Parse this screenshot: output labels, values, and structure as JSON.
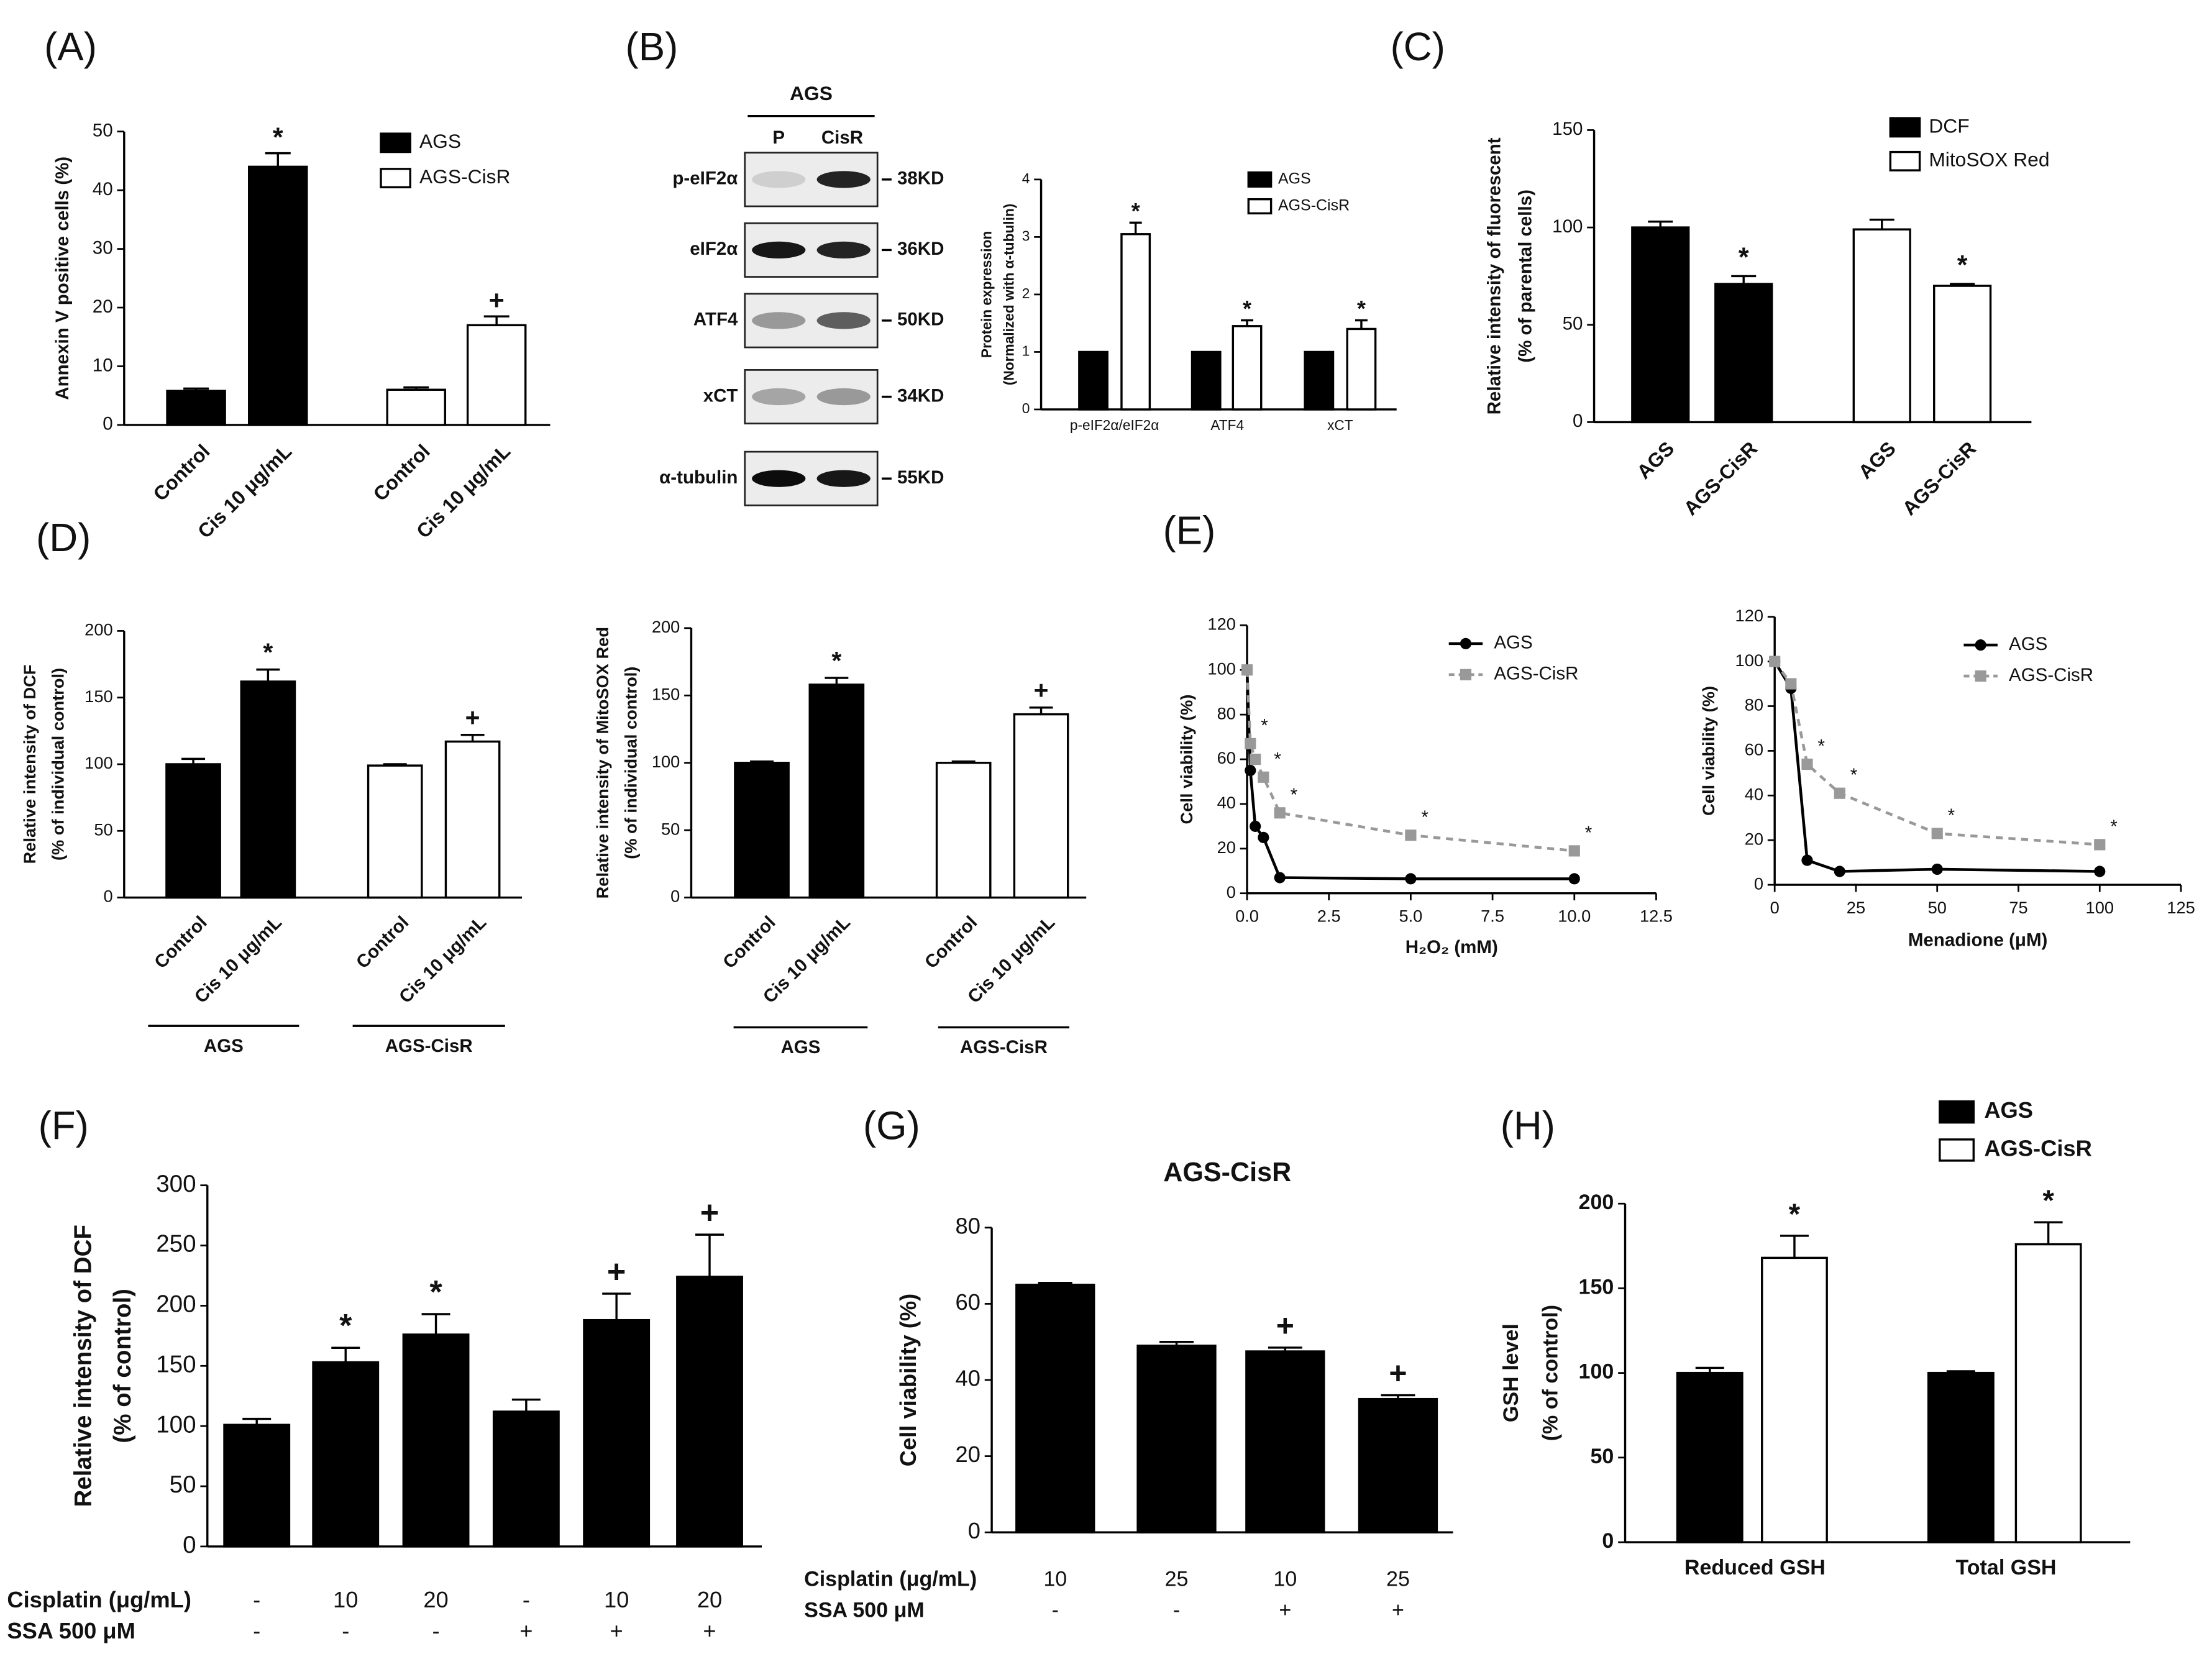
{
  "panel_labels": [
    "(A)",
    "(B)",
    "(C)",
    "(D)",
    "(E)",
    "(F)",
    "(G)",
    "(H)"
  ],
  "blot": {
    "header": "AGS",
    "lanes": [
      "P",
      "CisR"
    ],
    "rows": [
      {
        "protein": "p-eIF2α",
        "size": "38KD"
      },
      {
        "protein": "eIF2α",
        "size": "36KD"
      },
      {
        "protein": "ATF4",
        "size": "50KD"
      },
      {
        "protein": "xCT",
        "size": "34KD"
      },
      {
        "protein": "α-tubulin",
        "size": "55KD"
      }
    ]
  },
  "chart_data": [
    {
      "type": "bar",
      "ylabel": "Annexin V positive cells (%)",
      "categories": [
        "Control",
        "Cis 10 μg/mL",
        "Control",
        "Cis 10 μg/mL"
      ],
      "ylim": [
        0,
        50
      ],
      "yticks": [
        0,
        10,
        20,
        30,
        40,
        50
      ],
      "series": [
        {
          "name": "AGS",
          "color": "#000000",
          "values": [
            5.8,
            44,
            null,
            null
          ],
          "errors": [
            0.4,
            2.3,
            null,
            null
          ],
          "markers": [
            null,
            "*",
            null,
            null
          ]
        },
        {
          "name": "AGS-CisR",
          "color": "#ffffff",
          "values": [
            null,
            null,
            6,
            17
          ],
          "errors": [
            null,
            null,
            0.4,
            1.5
          ],
          "markers": [
            null,
            null,
            null,
            "+"
          ]
        }
      ]
    },
    {
      "type": "bar",
      "ylabel": [
        "Protein expression",
        "(Normalized with α-tubulin)"
      ],
      "categories": [
        "p-eIF2α/eIF2α",
        "ATF4",
        "xCT"
      ],
      "ylim": [
        0,
        4
      ],
      "yticks": [
        0,
        1,
        2,
        3,
        4
      ],
      "series": [
        {
          "name": "AGS",
          "color": "#000000",
          "values": [
            1,
            1,
            1
          ]
        },
        {
          "name": "AGS-CisR",
          "color": "#ffffff",
          "values": [
            3.05,
            1.45,
            1.4
          ],
          "errors": [
            0.2,
            0.1,
            0.15
          ],
          "markers": [
            "*",
            "*",
            "*"
          ]
        }
      ]
    },
    {
      "type": "bar",
      "ylabel": [
        "Relative intensity of fluorescent",
        "(% of parental cells)"
      ],
      "categories": [
        "AGS",
        "AGS-CisR",
        "AGS",
        "AGS-CisR"
      ],
      "ylim": [
        0,
        150
      ],
      "yticks": [
        0,
        50,
        100,
        150
      ],
      "series": [
        {
          "name": "DCF",
          "color": "#000000",
          "values": [
            100,
            71,
            null,
            null
          ],
          "errors": [
            3,
            4,
            null,
            null
          ],
          "markers": [
            null,
            "*",
            null,
            null
          ]
        },
        {
          "name": "MitoSOX Red",
          "color": "#ffffff",
          "values": [
            null,
            null,
            99,
            70
          ],
          "errors": [
            null,
            null,
            5,
            1
          ],
          "markers": [
            null,
            null,
            null,
            "*"
          ]
        }
      ]
    },
    {
      "type": "bar",
      "ylabel": [
        "Relative intensity of DCF",
        "(% of individual control)"
      ],
      "categories": [
        "Control",
        "Cis 10 μg/mL",
        "Control",
        "Cis 10 μg/mL"
      ],
      "groups": [
        "AGS",
        "AGS-CisR"
      ],
      "ylim": [
        0,
        200
      ],
      "yticks": [
        0,
        50,
        100,
        150,
        200
      ],
      "series": [
        {
          "color": "#000000",
          "values": [
            100,
            162,
            null,
            null
          ],
          "errors": [
            4,
            9,
            null,
            null
          ],
          "markers": [
            null,
            "*",
            null,
            null
          ]
        },
        {
          "color": "#ffffff",
          "values": [
            null,
            null,
            99,
            117
          ],
          "errors": [
            null,
            null,
            1,
            5
          ],
          "markers": [
            null,
            null,
            null,
            "+"
          ]
        }
      ]
    },
    {
      "type": "bar",
      "ylabel": [
        "Relative intensity of MitoSOX Red",
        "(% of individual control)"
      ],
      "categories": [
        "Control",
        "Cis 10 μg/mL",
        "Control",
        "Cis 10 μg/mL"
      ],
      "groups": [
        "AGS",
        "AGS-CisR"
      ],
      "ylim": [
        0,
        200
      ],
      "yticks": [
        0,
        50,
        100,
        150,
        200
      ],
      "series": [
        {
          "color": "#000000",
          "values": [
            100,
            158,
            null,
            null
          ],
          "errors": [
            1,
            5,
            null,
            null
          ],
          "markers": [
            null,
            "*",
            null,
            null
          ]
        },
        {
          "color": "#ffffff",
          "values": [
            null,
            null,
            100,
            136
          ],
          "errors": [
            null,
            null,
            1,
            5
          ],
          "markers": [
            null,
            null,
            null,
            "+"
          ]
        }
      ]
    },
    {
      "type": "line",
      "ylabel": "Cell viability (%)",
      "xlabel": "H₂O₂ (mM)",
      "x": [
        0,
        0.1,
        0.25,
        0.5,
        1,
        5,
        10
      ],
      "xlim": [
        0,
        12.5
      ],
      "xticks": [
        {
          "value": 0,
          "label": "0.0"
        },
        {
          "value": 2.5,
          "label": "2.5"
        },
        {
          "value": 5,
          "label": "5.0"
        },
        {
          "value": 7.5,
          "label": "7.5"
        },
        {
          "value": 10,
          "label": "10.0"
        },
        {
          "value": 12.5,
          "label": "12.5"
        }
      ],
      "ylim": [
        0,
        120
      ],
      "yticks": [
        0,
        20,
        40,
        60,
        80,
        100,
        120
      ],
      "series": [
        {
          "name": "AGS",
          "color": "#000000",
          "line_style": "solid",
          "marker": "circle",
          "values": [
            100,
            55,
            30,
            25,
            7,
            6.5,
            6.5
          ]
        },
        {
          "name": "AGS-CisR",
          "color": "#999999",
          "line_style": "dashed",
          "marker": "square",
          "values": [
            100,
            67,
            60,
            52,
            36,
            26,
            19
          ],
          "markers": [
            null,
            "*",
            null,
            "*",
            "*",
            "*",
            "*"
          ]
        }
      ]
    },
    {
      "type": "line",
      "ylabel": "Cell viability (%)",
      "xlabel": "Menadione (μM)",
      "x": [
        0,
        5,
        10,
        20,
        50,
        100
      ],
      "xlim": [
        0,
        125
      ],
      "xticks": [
        0,
        25,
        50,
        75,
        100,
        125
      ],
      "ylim": [
        0,
        120
      ],
      "yticks": [
        0,
        20,
        40,
        60,
        80,
        100,
        120
      ],
      "series": [
        {
          "name": "AGS",
          "color": "#000000",
          "line_style": "solid",
          "marker": "circle",
          "values": [
            100,
            88,
            11,
            6,
            7,
            6
          ]
        },
        {
          "name": "AGS-CisR",
          "color": "#999999",
          "line_style": "dashed",
          "marker": "square",
          "values": [
            100,
            90,
            54,
            41,
            23,
            18
          ],
          "markers": [
            null,
            null,
            "*",
            "*",
            "*",
            "*"
          ]
        }
      ]
    },
    {
      "type": "bar",
      "ylabel": [
        "Relative intensity of DCF",
        "(% of control)"
      ],
      "ylim": [
        0,
        300
      ],
      "yticks": [
        0,
        50,
        100,
        150,
        200,
        250,
        300
      ],
      "color": "#000000",
      "values": [
        101,
        153,
        176,
        112,
        188,
        224
      ],
      "errors": [
        5,
        12,
        17,
        10,
        22,
        35
      ],
      "markers": [
        null,
        "*",
        "*",
        null,
        "+",
        "+"
      ],
      "conditions": [
        {
          "label": "Cisplatin (μg/mL)",
          "values": [
            "-",
            "10",
            "20",
            "-",
            "10",
            "20"
          ]
        },
        {
          "label": "SSA 500 μM",
          "values": [
            "-",
            "-",
            "-",
            "+",
            "+",
            "+"
          ]
        }
      ]
    },
    {
      "type": "bar",
      "title": "AGS-CisR",
      "ylabel": "Cell viability (%)",
      "ylim": [
        0,
        80
      ],
      "yticks": [
        0,
        20,
        40,
        60,
        80
      ],
      "color": "#000000",
      "values": [
        65,
        49,
        47.5,
        35
      ],
      "errors": [
        0.5,
        1,
        1,
        1
      ],
      "markers": [
        null,
        null,
        "+",
        "+"
      ],
      "conditions": [
        {
          "label": "Cisplatin (μg/mL)",
          "values": [
            "10",
            "25",
            "10",
            "25"
          ]
        },
        {
          "label": "SSA 500 μM",
          "values": [
            "-",
            "-",
            "+",
            "+"
          ]
        }
      ]
    },
    {
      "type": "bar",
      "ylabel": [
        "GSH level",
        "(% of control)"
      ],
      "categories": [
        "Reduced GSH",
        "Total GSH"
      ],
      "ylim": [
        0,
        200
      ],
      "yticks": [
        0,
        50,
        100,
        150,
        200
      ],
      "series": [
        {
          "name": "AGS",
          "color": "#000000",
          "values": [
            100,
            100
          ],
          "errors": [
            3,
            1
          ]
        },
        {
          "name": "AGS-CisR",
          "color": "#ffffff",
          "values": [
            168,
            176
          ],
          "errors": [
            13,
            13
          ],
          "markers": [
            "*",
            "*"
          ]
        }
      ]
    }
  ]
}
